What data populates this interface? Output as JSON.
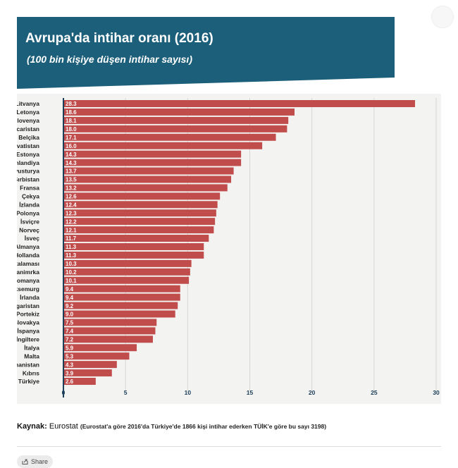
{
  "header": {
    "title": "Avrupa'da intihar oranı (2016)",
    "subtitle": "(100 bin kişiye düşen intihar sayısı)",
    "banner_color": "#1c5f7a"
  },
  "chart_data": {
    "type": "bar",
    "orientation": "horizontal",
    "title": "Avrupa'da intihar oranı (2016)",
    "subtitle": "(100 bin kişiye düşen intihar sayısı)",
    "categories": [
      "Litvanya",
      "Letonya",
      "Slovenya",
      "Macaristan",
      "Belçika",
      "Hırvatistan",
      "Estonya",
      "Finlandiya",
      "Avusturya",
      "Sırbistan",
      "Fransa",
      "Çekya",
      "İzlanda",
      "Polonya",
      "İsviçre",
      "Norveç",
      "İsveç",
      "Almanya",
      "Hollanda",
      "AB ortalaması",
      "Danimrka",
      "Romanya",
      "Lüksemurg",
      "İrlanda",
      "Bulgaristan",
      "Portekiz",
      "Slovakya",
      "İspanya",
      "İngiltere",
      "İtalya",
      "Malta",
      "Yunanistan",
      "Kıbrıs",
      "Türkiye"
    ],
    "values": [
      28.3,
      18.6,
      18.1,
      18.0,
      17.1,
      16.0,
      14.3,
      14.3,
      13.7,
      13.5,
      13.2,
      12.6,
      12.4,
      12.3,
      12.2,
      12.1,
      11.7,
      11.3,
      11.3,
      10.3,
      10.2,
      10.1,
      9.4,
      9.4,
      9.2,
      9.0,
      7.5,
      7.4,
      7.2,
      5.9,
      5.3,
      4.3,
      3.9,
      2.6
    ],
    "value_labels": [
      "28.3",
      "18.6",
      "18.1",
      "18.0",
      "17.1",
      "16.0",
      "14.3",
      "14.3",
      "13.7",
      "13.5",
      "13.2",
      "12.6",
      "12.4",
      "12.3",
      "12.2",
      "12.1",
      "11.7",
      "11.3",
      "11.3",
      "10.3",
      "10.2",
      "10.1",
      "9.4",
      "9.4",
      "9.2",
      "9.0",
      "7.5",
      "7.4",
      "7.2",
      "5.9",
      "5.3",
      "4.3",
      "3.9",
      "2.6"
    ],
    "xticks": [
      "0",
      "5",
      "10",
      "15",
      "20",
      "25",
      "30"
    ],
    "xlim": [
      0,
      30
    ],
    "grid": true,
    "bar_color": "#c14c4c",
    "xlabel": "",
    "ylabel": ""
  },
  "source": {
    "label": "Kaynak:",
    "text": "Eurostat",
    "note": "(Eurostat'a göre 2016'da Türkiye'de 1866 kişi intihar ederken TÜİK'e göre bu sayı 3198)"
  },
  "share": {
    "label": "Share",
    "icon": "share-icon"
  }
}
